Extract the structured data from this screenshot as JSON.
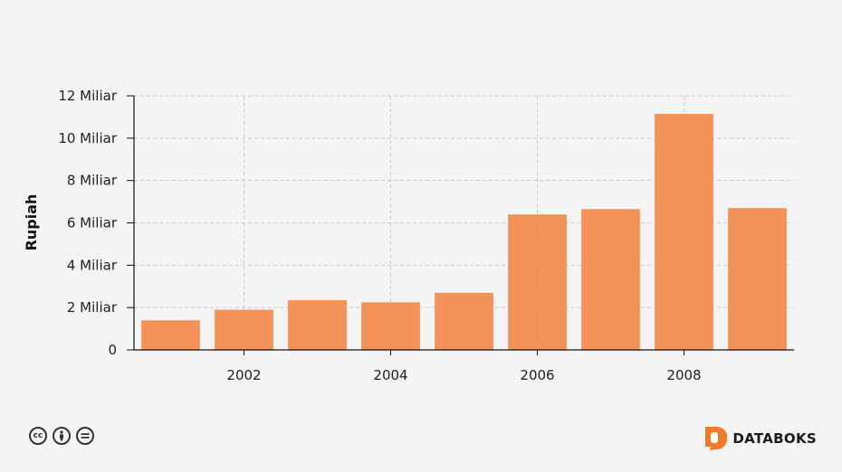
{
  "chart_data": {
    "type": "bar",
    "x": [
      2001,
      2002,
      2003,
      2004,
      2005,
      2006,
      2007,
      2008,
      2009
    ],
    "values": [
      1.4,
      1.9,
      2.35,
      2.25,
      2.7,
      6.4,
      6.65,
      11.15,
      6.7
    ],
    "xticks": [
      "2002",
      "2004",
      "2006",
      "2008"
    ],
    "yticks": [
      "0",
      "2 Miliar",
      "4 Miliar",
      "6 Miliar",
      "8 Miliar",
      "10 Miliar",
      "12 Miliar"
    ],
    "ylabel": "Rupiah",
    "ylim": [
      0,
      12
    ],
    "grid": true,
    "color": "#f28a4c"
  },
  "footer": {
    "license_icons": [
      "cc-icon",
      "by-icon",
      "nd-icon"
    ],
    "brand": "DATABOKS",
    "brand_color": "#f07a2a"
  }
}
